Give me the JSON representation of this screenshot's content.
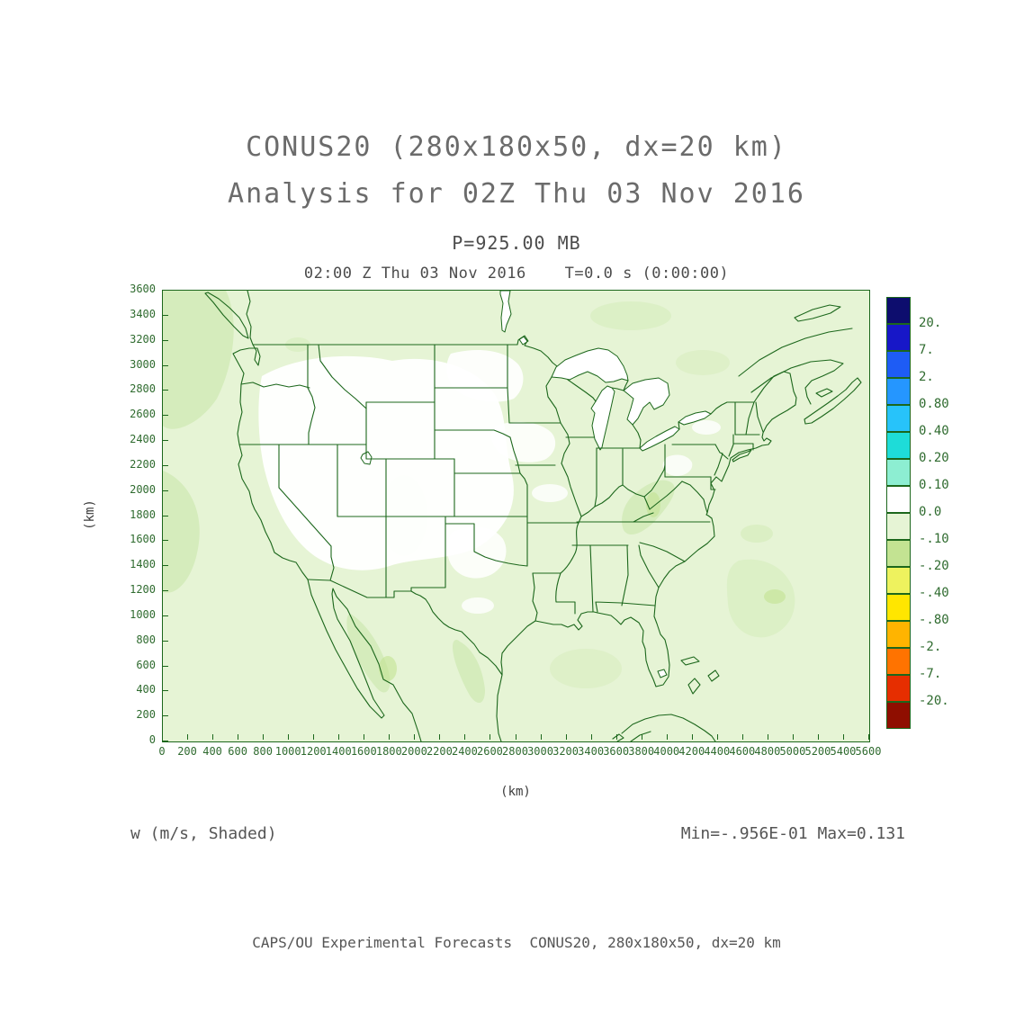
{
  "header": {
    "title_line1": "CONUS20 (280x180x50, dx=20 km)",
    "title_line2": "Analysis for 02Z Thu 03 Nov 2016"
  },
  "plot": {
    "pressure_label": "P=925.00 MB",
    "time_label": "02:00 Z Thu 03 Nov 2016    T=0.0 s (0:00:00)"
  },
  "footer": {
    "left": "w (m/s, Shaded)",
    "right": "Min=-.956E-01 Max=0.131",
    "credit": "CAPS/OU Experimental Forecasts  CONUS20, 280x180x50, dx=20 km"
  },
  "colors": {
    "map_line": "#1c671c",
    "shade_base": "#e6f4d5",
    "shade_light": "#ffffff",
    "shade_dark": "#d5ecbc",
    "title_text": "#6b6b6b",
    "axis_text": "#2f6b2f",
    "footer_text": "#555555"
  },
  "chart_data": {
    "type": "heatmap",
    "title": "CONUS20 (280x180x50, dx=20 km) Analysis for 02Z Thu 03 Nov 2016",
    "subtitle": "P=925.00 MB",
    "valid_time": "02:00 Z Thu 03 Nov 2016  T=0.0 s (0:00:00)",
    "field": "w (m/s, Shaded)",
    "field_min": "-.956E-01",
    "field_max": "0.131",
    "xlabel": "(km)",
    "ylabel": "(km)",
    "xlim": [
      0,
      5600
    ],
    "ylim": [
      0,
      3600
    ],
    "grid": false,
    "legend_position": "right-colorbar",
    "region": "Continental United States with state borders, southern Canada, northern Mexico, Great Lakes, Cuba",
    "x_ticks": [
      0,
      200,
      400,
      600,
      800,
      1000,
      1200,
      1400,
      1600,
      1800,
      2000,
      2200,
      2400,
      2600,
      2800,
      3000,
      3200,
      3400,
      3600,
      3800,
      4000,
      4200,
      4400,
      4600,
      4800,
      5000,
      5200,
      5400,
      5600
    ],
    "y_ticks": [
      0,
      200,
      400,
      600,
      800,
      1000,
      1200,
      1400,
      1600,
      1800,
      2000,
      2200,
      2400,
      2600,
      2800,
      3000,
      3200,
      3400,
      3600
    ],
    "colorbar_levels": [
      "20.",
      "7.",
      "2.",
      "0.80",
      "0.40",
      "0.20",
      "0.10",
      "0.0",
      "-.10",
      "-.20",
      "-.40",
      "-.80",
      "-2.",
      "-7.",
      "-20."
    ],
    "colorbar_colors": [
      "#0d0d6e",
      "#1717c8",
      "#1e5cf5",
      "#2596ff",
      "#27c3fa",
      "#1edcd8",
      "#8deed2",
      "#ffffff",
      "#e6f4d5",
      "#c3e392",
      "#eef25e",
      "#ffe600",
      "#ffb400",
      "#ff7300",
      "#e62e00",
      "#8f0e00"
    ],
    "shading_interpretation": "values between 0.0 and -0.10 (pale green) cover most of the domain; white patches are 0.0 to 0.10"
  }
}
